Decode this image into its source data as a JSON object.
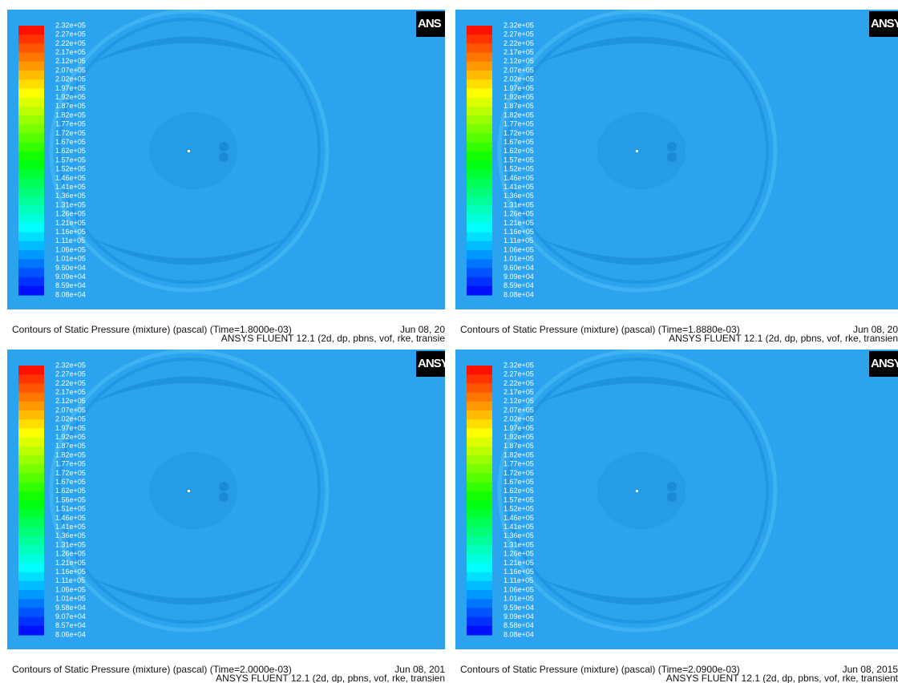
{
  "panels": [
    {
      "logo": "ANS",
      "legend": [
        "2.32e+05",
        "2.27e+05",
        "2.22e+05",
        "2.17e+05",
        "2.12e+05",
        "2.07e+05",
        "2.02e+05",
        "1.97e+05",
        "1.92e+05",
        "1.87e+05",
        "1.82e+05",
        "1.77e+05",
        "1.72e+05",
        "1.67e+05",
        "1.62e+05",
        "1.57e+05",
        "1.52e+05",
        "1.46e+05",
        "1.41e+05",
        "1.36e+05",
        "1.31e+05",
        "1.26e+05",
        "1.21e+05",
        "1.16e+05",
        "1.11e+05",
        "1.06e+05",
        "1.01e+05",
        "9.60e+04",
        "9.09e+04",
        "8.59e+04",
        "8.08e+04"
      ],
      "caption": "Contours of Static Pressure (mixture)  (pascal)  (Time=1.8000e-03)",
      "date": "Jun 08, 20",
      "version": "ANSYS FLUENT 12.1 (2d, dp, pbns, vof, rke, transie"
    },
    {
      "logo": "ANSY",
      "legend": [
        "2.32e+05",
        "2.27e+05",
        "2.22e+05",
        "2.17e+05",
        "2.12e+05",
        "2.07e+05",
        "2.02e+05",
        "1.97e+05",
        "1.92e+05",
        "1.87e+05",
        "1.82e+05",
        "1.77e+05",
        "1.72e+05",
        "1.67e+05",
        "1.62e+05",
        "1.57e+05",
        "1.52e+05",
        "1.46e+05",
        "1.41e+05",
        "1.36e+05",
        "1.31e+05",
        "1.26e+05",
        "1.21e+05",
        "1.16e+05",
        "1.11e+05",
        "1.06e+05",
        "1.01e+05",
        "9.60e+04",
        "9.09e+04",
        "8.59e+04",
        "8.08e+04"
      ],
      "caption": "Contours of Static Pressure (mixture)  (pascal)  (Time=1.8880e-03)",
      "date": "Jun 08, 20",
      "version": "ANSYS FLUENT 12.1 (2d, dp, pbns, vof, rke, transien"
    },
    {
      "logo": "ANSY",
      "legend": [
        "2.32e+05",
        "2.27e+05",
        "2.22e+05",
        "2.17e+05",
        "2.12e+05",
        "2.07e+05",
        "2.02e+05",
        "1.97e+05",
        "1.92e+05",
        "1.87e+05",
        "1.82e+05",
        "1.77e+05",
        "1.72e+05",
        "1.67e+05",
        "1.62e+05",
        "1.56e+05",
        "1.51e+05",
        "1.46e+05",
        "1.41e+05",
        "1.36e+05",
        "1.31e+05",
        "1.26e+05",
        "1.21e+05",
        "1.16e+05",
        "1.11e+05",
        "1.06e+05",
        "1.01e+05",
        "9.58e+04",
        "9.07e+04",
        "8.57e+04",
        "8.06e+04"
      ],
      "caption": "Contours of Static Pressure (mixture)  (pascal)  (Time=2.0000e-03)",
      "date": "Jun 08, 201",
      "version": "ANSYS FLUENT 12.1 (2d, dp, pbns, vof, rke, transien"
    },
    {
      "logo": "ANSY",
      "legend": [
        "2.32e+05",
        "2.27e+05",
        "2.22e+05",
        "2.17e+05",
        "2.12e+05",
        "2.07e+05",
        "2.02e+05",
        "1.97e+05",
        "1.92e+05",
        "1.87e+05",
        "1.82e+05",
        "1.77e+05",
        "1.72e+05",
        "1.67e+05",
        "1.62e+05",
        "1.57e+05",
        "1.52e+05",
        "1.46e+05",
        "1.41e+05",
        "1.36e+05",
        "1.31e+05",
        "1.26e+05",
        "1.21e+05",
        "1.16e+05",
        "1.11e+05",
        "1.06e+05",
        "1.01e+05",
        "9.59e+04",
        "9.09e+04",
        "8.58e+04",
        "8.08e+04"
      ],
      "caption": "Contours of Static Pressure (mixture)  (pascal)  (Time=2.0900e-03)",
      "date": "Jun 08, 2015",
      "version": "ANSYS FLUENT 12.1 (2d, dp, pbns, vof, rke, transient"
    }
  ]
}
